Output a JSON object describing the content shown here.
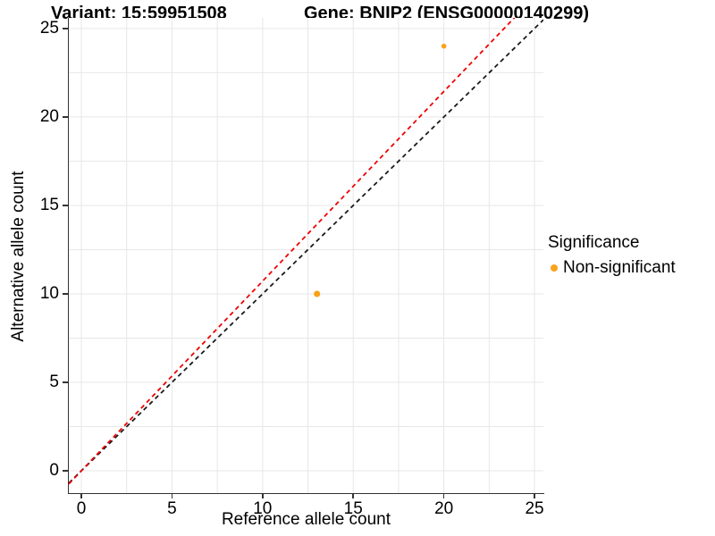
{
  "chart_data": {
    "type": "scatter",
    "titles": {
      "left": "Variant: 15:59951508",
      "right": "Gene: BNIP2 (ENSG00000140299)"
    },
    "xlabel": "Reference allele count",
    "ylabel": "Alternative allele count",
    "x_ticks": [
      "0",
      "5",
      "10",
      "15",
      "20",
      "25"
    ],
    "x_tick_values": [
      0,
      5,
      10,
      15,
      20,
      25
    ],
    "y_ticks": [
      "0",
      "5",
      "10",
      "15",
      "20",
      "25"
    ],
    "y_tick_values": [
      0,
      5,
      10,
      15,
      20,
      25
    ],
    "xlim": [
      -0.69,
      25.49
    ],
    "ylim": [
      -1.31,
      25.6
    ],
    "grid": {
      "show": true,
      "step": 2.5,
      "color": "#E7E7E7"
    },
    "axis_color": "#333333",
    "series": [
      {
        "name": "Non-significant",
        "color": "#F9A21B",
        "points": [
          {
            "x": 20,
            "y": 24,
            "r": 2.8
          },
          {
            "x": 13,
            "y": 10,
            "r": 3.6
          }
        ]
      }
    ],
    "lines": [
      {
        "name": "identity",
        "color": "#1A1A1A",
        "style": "dashed",
        "slope": 1.0,
        "intercept": 0
      },
      {
        "name": "fitted-ratio",
        "color": "#EE0000",
        "style": "dashed",
        "slope": 1.072,
        "intercept": 0
      }
    ],
    "legend": {
      "title": "Significance",
      "position": "right",
      "entries": [
        {
          "label": "Non-significant",
          "color": "#F9A21B"
        }
      ]
    }
  }
}
